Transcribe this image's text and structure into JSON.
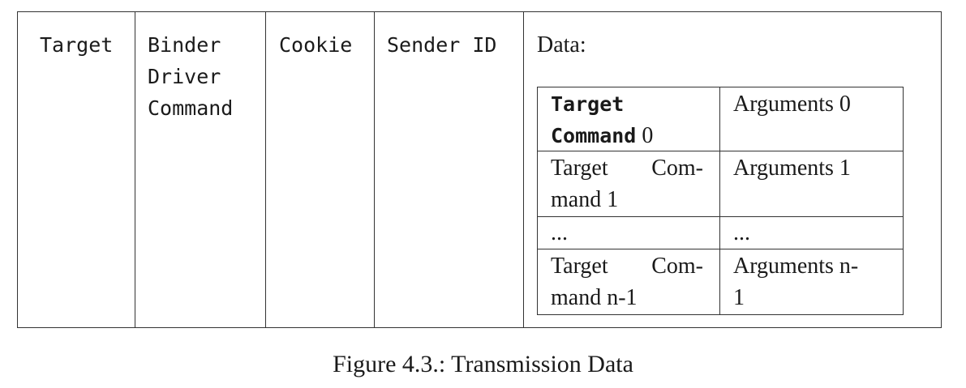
{
  "columns": {
    "target": "Target",
    "binder_line1": "Binder",
    "binder_line2": "Driver",
    "binder_line3": "Command",
    "cookie": "Cookie",
    "sender_id": "Sender ID",
    "data": "Data:"
  },
  "data_table": {
    "row0": {
      "cmd_line1": "Target",
      "cmd_line2_mono": "Command",
      "cmd_line2_num": " 0",
      "args": "Arguments 0"
    },
    "row1": {
      "cmd_line1_a": "Target",
      "cmd_line1_b": "Com-",
      "cmd_line2": "mand 1",
      "args": "Arguments 1"
    },
    "row2": {
      "cmd": "...",
      "args": "..."
    },
    "row3": {
      "cmd_line1_a": "Target",
      "cmd_line1_b": "Com-",
      "cmd_line2": "mand n-1",
      "args_line1": "Arguments n-",
      "args_line2": "1"
    }
  },
  "caption": "Figure 4.3.: Transmission Data"
}
